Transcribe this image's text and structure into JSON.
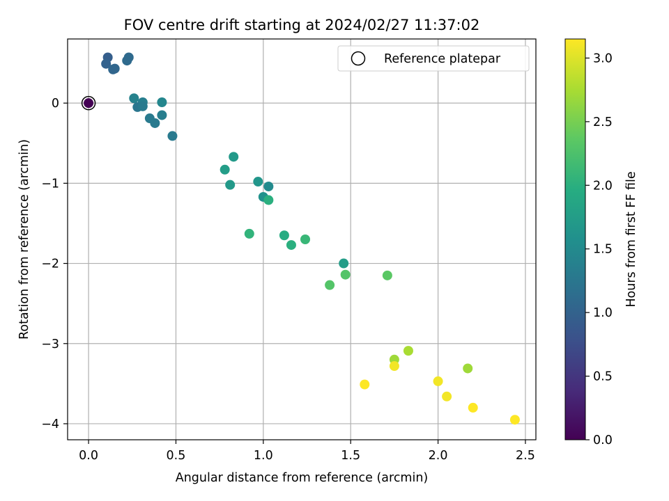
{
  "chart_data": {
    "type": "scatter",
    "title": "FOV centre drift starting at 2024/02/27 11:37:02",
    "xlabel": "Angular distance from reference (arcmin)",
    "ylabel": "Rotation from reference (arcmin)",
    "xlim": [
      -0.12,
      2.56
    ],
    "ylim": [
      -4.2,
      0.8
    ],
    "xticks": [
      0,
      0.5,
      1,
      1.5,
      2,
      2.5
    ],
    "xtick_labels": [
      "0.0",
      "0.5",
      "1.0",
      "1.5",
      "2.0",
      "2.5"
    ],
    "yticks": [
      0,
      -1,
      -2,
      -3,
      -4
    ],
    "ytick_labels": [
      "0",
      "−1",
      "−2",
      "−3",
      "−4"
    ],
    "grid": true,
    "legend": {
      "position": "top-right",
      "entries": [
        "Reference platepar"
      ]
    },
    "colorbar": {
      "label": "Hours from first FF file",
      "colormap": "viridis",
      "range": [
        0,
        3.15
      ],
      "ticks": [
        0,
        0.5,
        1,
        1.5,
        2,
        2.5,
        3
      ],
      "tick_labels": [
        "0.0",
        "0.5",
        "1.0",
        "1.5",
        "2.0",
        "2.5",
        "3.0"
      ]
    },
    "reference_point": {
      "x": 0,
      "y": 0,
      "hours": 0
    },
    "points": [
      {
        "x": 0.11,
        "y": 0.57,
        "hours": 0.95
      },
      {
        "x": 0.1,
        "y": 0.49,
        "hours": 1.0
      },
      {
        "x": 0.15,
        "y": 0.43,
        "hours": 1.05
      },
      {
        "x": 0.14,
        "y": 0.42,
        "hours": 1.05
      },
      {
        "x": 0.23,
        "y": 0.57,
        "hours": 1.1
      },
      {
        "x": 0.22,
        "y": 0.53,
        "hours": 1.1
      },
      {
        "x": 0.26,
        "y": 0.06,
        "hours": 1.4
      },
      {
        "x": 0.31,
        "y": 0.01,
        "hours": 1.35
      },
      {
        "x": 0.28,
        "y": -0.05,
        "hours": 1.25
      },
      {
        "x": 0.31,
        "y": -0.04,
        "hours": 1.3
      },
      {
        "x": 0.42,
        "y": 0.01,
        "hours": 1.45
      },
      {
        "x": 0.35,
        "y": -0.19,
        "hours": 1.3
      },
      {
        "x": 0.38,
        "y": -0.25,
        "hours": 1.3
      },
      {
        "x": 0.42,
        "y": -0.15,
        "hours": 1.35
      },
      {
        "x": 0.48,
        "y": -0.41,
        "hours": 1.3
      },
      {
        "x": 0.83,
        "y": -0.67,
        "hours": 1.7
      },
      {
        "x": 0.78,
        "y": -0.83,
        "hours": 1.75
      },
      {
        "x": 0.81,
        "y": -1.02,
        "hours": 1.7
      },
      {
        "x": 0.97,
        "y": -0.98,
        "hours": 1.65
      },
      {
        "x": 1.03,
        "y": -1.04,
        "hours": 1.5
      },
      {
        "x": 1.0,
        "y": -1.17,
        "hours": 1.6
      },
      {
        "x": 1.03,
        "y": -1.21,
        "hours": 2.0
      },
      {
        "x": 0.92,
        "y": -1.63,
        "hours": 2.05
      },
      {
        "x": 1.12,
        "y": -1.65,
        "hours": 1.95
      },
      {
        "x": 1.16,
        "y": -1.77,
        "hours": 2.0
      },
      {
        "x": 1.24,
        "y": -1.7,
        "hours": 2.1
      },
      {
        "x": 1.46,
        "y": -2.0,
        "hours": 1.75
      },
      {
        "x": 1.47,
        "y": -2.14,
        "hours": 2.3
      },
      {
        "x": 1.38,
        "y": -2.27,
        "hours": 2.3
      },
      {
        "x": 1.71,
        "y": -2.15,
        "hours": 2.35
      },
      {
        "x": 1.83,
        "y": -3.09,
        "hours": 2.75
      },
      {
        "x": 1.75,
        "y": -3.2,
        "hours": 2.7
      },
      {
        "x": 2.17,
        "y": -3.31,
        "hours": 2.7
      },
      {
        "x": 1.75,
        "y": -3.28,
        "hours": 3.1
      },
      {
        "x": 1.58,
        "y": -3.51,
        "hours": 3.15
      },
      {
        "x": 2.0,
        "y": -3.47,
        "hours": 3.1
      },
      {
        "x": 2.05,
        "y": -3.66,
        "hours": 3.1
      },
      {
        "x": 2.2,
        "y": -3.8,
        "hours": 3.15
      },
      {
        "x": 2.44,
        "y": -3.95,
        "hours": 3.15
      }
    ]
  }
}
